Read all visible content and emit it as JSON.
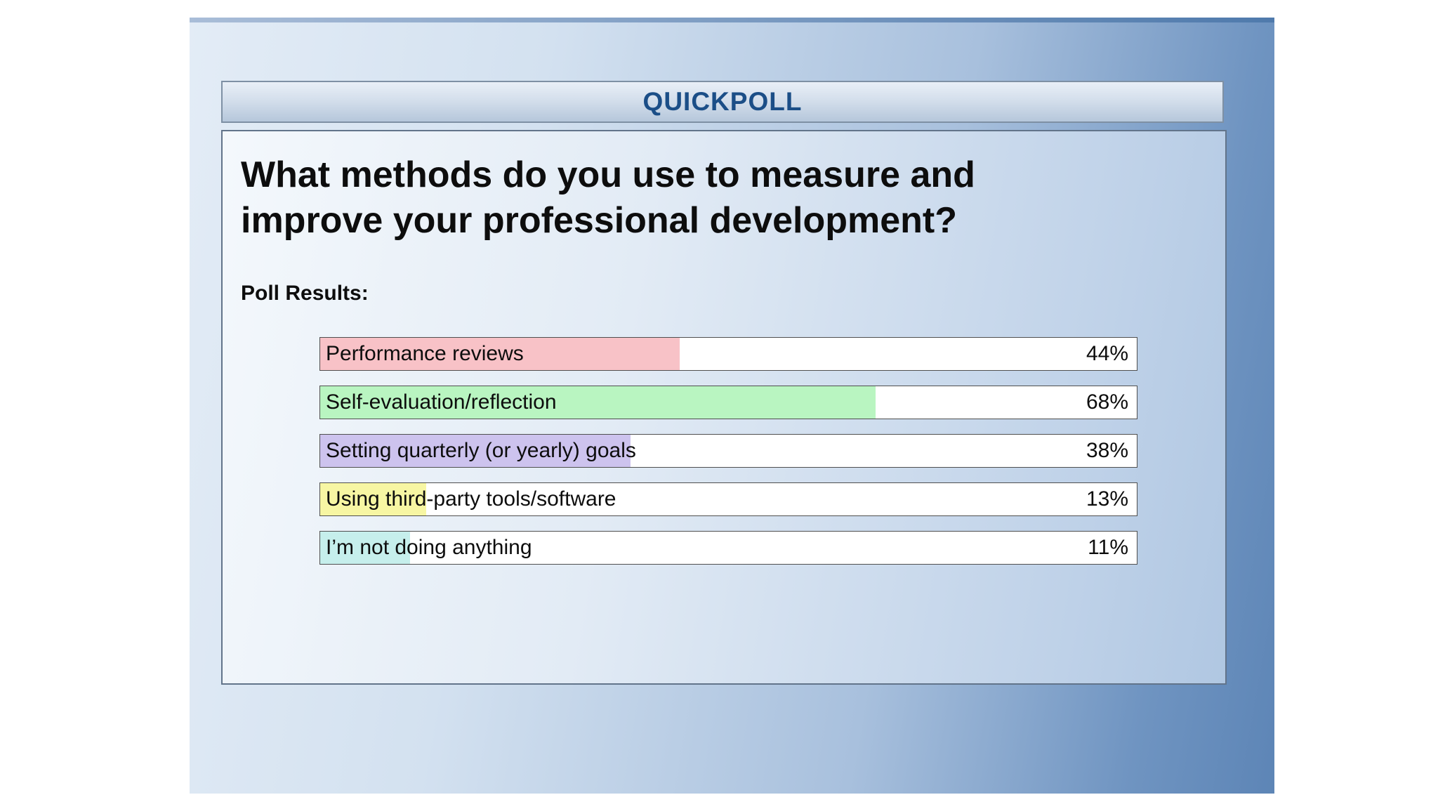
{
  "header": {
    "title": "QUICKPOLL"
  },
  "question": "What methods do you use to measure and improve your professional development?",
  "results_label": "Poll Results:",
  "chart_data": {
    "type": "bar",
    "orientation": "horizontal",
    "title": "What methods do you use to measure and improve your professional development?",
    "subtitle": "Poll Results:",
    "categories": [
      "Performance reviews",
      "Self-evaluation/reflection",
      "Setting quarterly (or yearly) goals",
      "Using third-party tools/software",
      "I’m not doing anything"
    ],
    "values": [
      44,
      68,
      38,
      13,
      11
    ],
    "value_suffix": "%",
    "xlim": [
      0,
      100
    ],
    "grid": false,
    "legend": false,
    "bar_colors": [
      "#f8c2c7",
      "#b9f5c1",
      "#cdc3ee",
      "#f7f6a3",
      "#c6efec"
    ]
  },
  "colors": {
    "header_text": "#1b4e87",
    "panel_gradient_start": "#e3ecf6",
    "panel_gradient_end": "#5d85b6",
    "row_border": "#4f4f4f"
  }
}
